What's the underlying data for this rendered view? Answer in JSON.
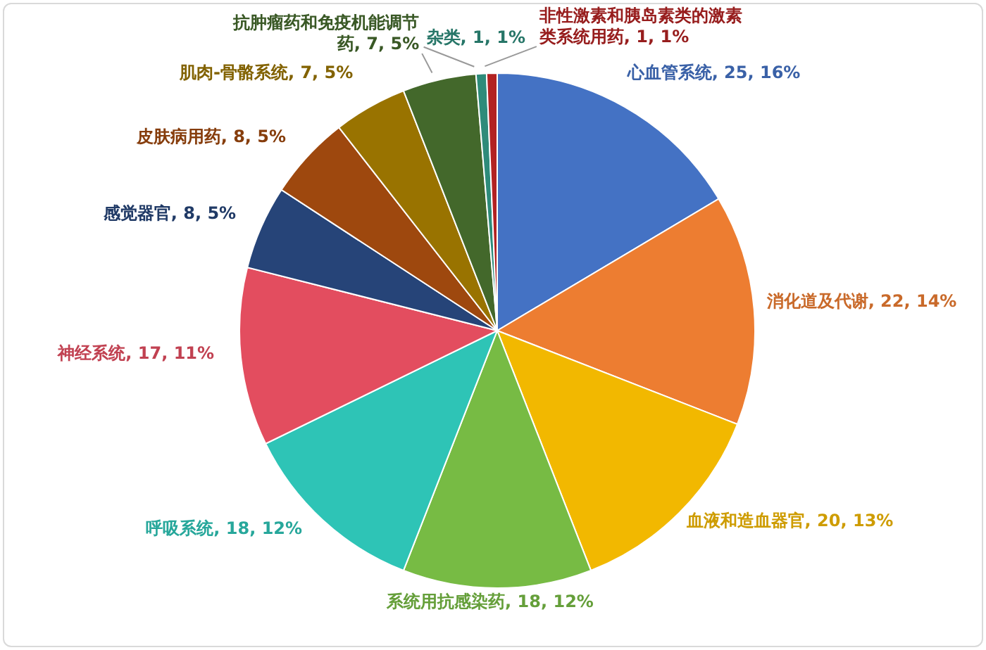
{
  "chart_data": {
    "type": "pie",
    "categories": [
      "心血管系统",
      "消化道及代谢",
      "血液和造血器官",
      "系统用抗感染药",
      "呼吸系统",
      "神经系统",
      "感觉器官",
      "皮肤病用药",
      "肌肉-骨骼系统",
      "抗肿瘤药和免疫机能调节药",
      "杂类",
      "非性激素和胰岛素类的激素类系统用药"
    ],
    "values": [
      25,
      22,
      20,
      18,
      18,
      17,
      8,
      8,
      7,
      7,
      1,
      1
    ],
    "value_labels": [
      "25, 16%",
      "22, 14%",
      "20, 13%",
      "18, 12%",
      "18, 12%",
      "17, 11%",
      "8, 5%",
      "8, 5%",
      "7, 5%",
      "7, 5%",
      "1, 1%",
      "1, 1%"
    ],
    "colors": [
      "#4472c4",
      "#ed7d31",
      "#f2b800",
      "#77bb44",
      "#2ec4b6",
      "#e34d5f",
      "#264478",
      "#9e480e",
      "#997300",
      "#43682b",
      "#2e8b7a",
      "#b22222"
    ]
  }
}
